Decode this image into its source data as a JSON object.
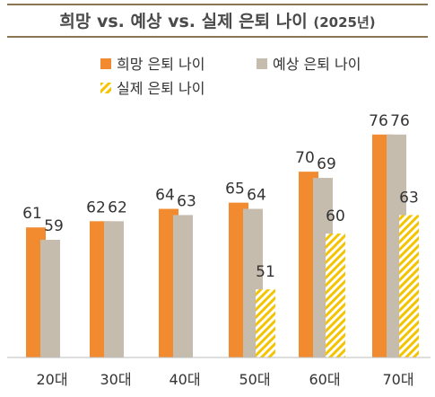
{
  "title": {
    "main": "희망 vs. 예상 vs. 실제 은퇴 나이",
    "sub": "(2025년)"
  },
  "chart_data": {
    "type": "bar",
    "title": "희망 vs. 예상 vs. 실제 은퇴 나이 (2025년)",
    "categories": [
      "20대",
      "30대",
      "40대",
      "50대",
      "60대",
      "70대"
    ],
    "series": [
      {
        "name": "희망 은퇴 나이",
        "values": [
          61,
          62,
          64,
          65,
          70,
          76
        ],
        "color": "#f28a30",
        "pattern": "solid"
      },
      {
        "name": "예상 은퇴 나이",
        "values": [
          59,
          62,
          63,
          64,
          69,
          76
        ],
        "color": "#c6bcae",
        "pattern": "solid"
      },
      {
        "name": "실제 은퇴 나이",
        "values": [
          null,
          null,
          null,
          51,
          60,
          63
        ],
        "color": "#f5c400",
        "pattern": "hatched"
      }
    ],
    "legend": "top",
    "grid": false,
    "data_labels": true,
    "ylim": [
      40,
      78
    ]
  }
}
